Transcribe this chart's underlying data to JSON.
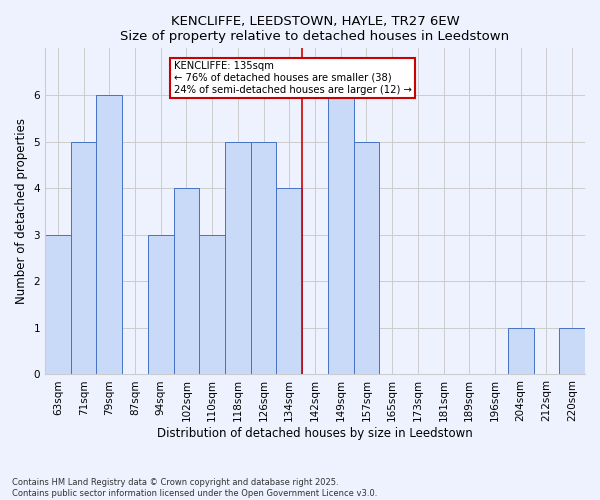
{
  "title_line1": "KENCLIFFE, LEEDSTOWN, HAYLE, TR27 6EW",
  "title_line2": "Size of property relative to detached houses in Leedstown",
  "xlabel": "Distribution of detached houses by size in Leedstown",
  "ylabel": "Number of detached properties",
  "categories": [
    "63sqm",
    "71sqm",
    "79sqm",
    "87sqm",
    "94sqm",
    "102sqm",
    "110sqm",
    "118sqm",
    "126sqm",
    "134sqm",
    "142sqm",
    "149sqm",
    "157sqm",
    "165sqm",
    "173sqm",
    "181sqm",
    "189sqm",
    "196sqm",
    "204sqm",
    "212sqm",
    "220sqm"
  ],
  "values": [
    3,
    5,
    6,
    0,
    3,
    4,
    3,
    5,
    5,
    4,
    0,
    6,
    5,
    0,
    0,
    0,
    0,
    0,
    1,
    0,
    1
  ],
  "bar_color": "#c9daf8",
  "bar_edge_color": "#4472c4",
  "highlight_index": 9,
  "annotation_text": "KENCLIFFE: 135sqm\n← 76% of detached houses are smaller (38)\n24% of semi-detached houses are larger (12) →",
  "annotation_box_color": "#ffffff",
  "annotation_box_edge_color": "#cc0000",
  "vline_color": "#cc0000",
  "ylim": [
    0,
    7
  ],
  "yticks": [
    0,
    1,
    2,
    3,
    4,
    5,
    6,
    7
  ],
  "footnote": "Contains HM Land Registry data © Crown copyright and database right 2025.\nContains public sector information licensed under the Open Government Licence v3.0.",
  "grid_color": "#cccccc",
  "background_color": "#eef2ff"
}
